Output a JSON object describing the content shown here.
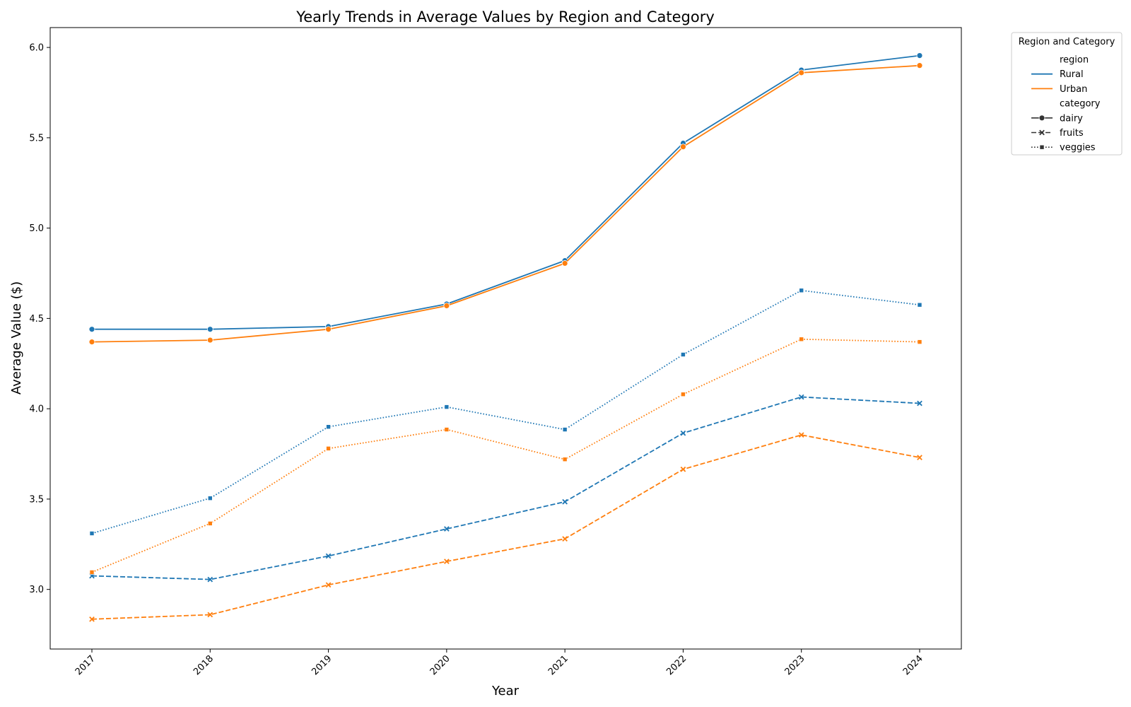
{
  "chart_data": {
    "type": "line",
    "title": "Yearly Trends in Average Values by Region and Category",
    "xlabel": "Year",
    "ylabel": "Average Value ($)",
    "x": [
      "2017",
      "2018",
      "2019",
      "2020",
      "2021",
      "2022",
      "2023",
      "2024"
    ],
    "ylim": [
      2.67,
      6.11
    ],
    "yticks": [
      "3.0",
      "3.5",
      "4.0",
      "4.5",
      "5.0",
      "5.5",
      "6.0"
    ],
    "grid": false,
    "legend": {
      "title": "Region and Category",
      "placement": "outside-top-right",
      "region_header": "region",
      "category_header": "category",
      "regions": [
        {
          "label": "Rural",
          "color": "#1f77b4"
        },
        {
          "label": "Urban",
          "color": "#ff7f0e"
        }
      ],
      "categories": [
        {
          "label": "dairy",
          "dash": "solid",
          "marker": "circle"
        },
        {
          "label": "fruits",
          "dash": "dashed",
          "marker": "x"
        },
        {
          "label": "veggies",
          "dash": "dotted",
          "marker": "square"
        }
      ]
    },
    "series": [
      {
        "region": "Rural",
        "category": "dairy",
        "values": [
          4.44,
          4.44,
          4.455,
          4.58,
          4.82,
          5.47,
          5.875,
          5.955
        ]
      },
      {
        "region": "Urban",
        "category": "dairy",
        "values": [
          4.37,
          4.38,
          4.44,
          4.57,
          4.805,
          5.45,
          5.86,
          5.9
        ]
      },
      {
        "region": "Rural",
        "category": "fruits",
        "values": [
          3.075,
          3.055,
          3.185,
          3.335,
          3.485,
          3.865,
          4.065,
          4.03
        ]
      },
      {
        "region": "Urban",
        "category": "fruits",
        "values": [
          2.835,
          2.86,
          3.025,
          3.155,
          3.28,
          3.665,
          3.855,
          3.73
        ]
      },
      {
        "region": "Rural",
        "category": "veggies",
        "values": [
          3.31,
          3.505,
          3.9,
          4.01,
          3.885,
          4.3,
          4.655,
          4.575
        ]
      },
      {
        "region": "Urban",
        "category": "veggies",
        "values": [
          3.095,
          3.365,
          3.78,
          3.885,
          3.72,
          4.08,
          4.385,
          4.37
        ]
      }
    ]
  }
}
